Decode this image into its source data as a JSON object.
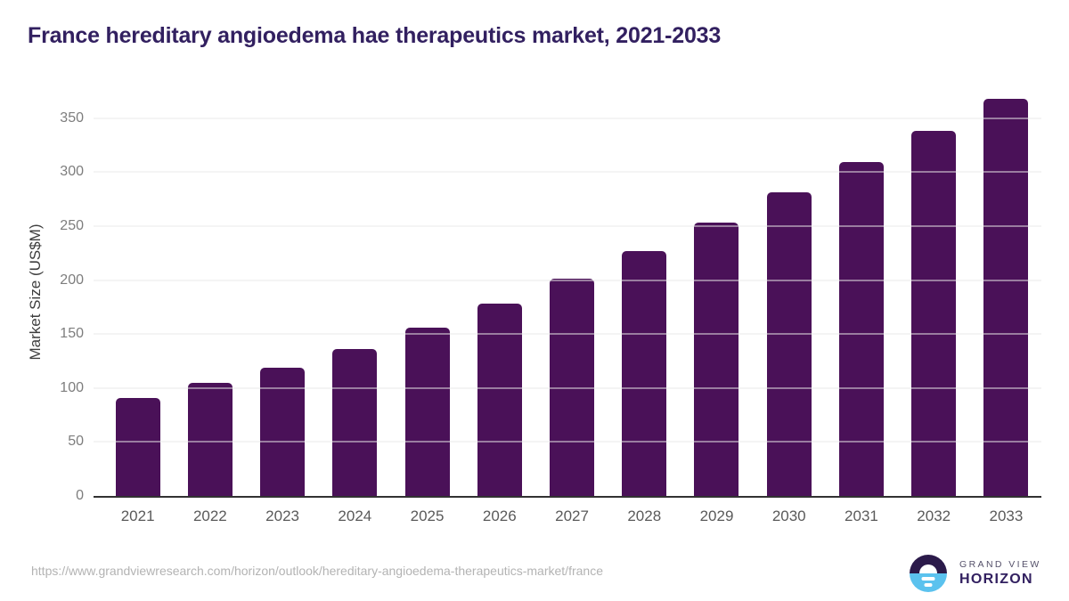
{
  "title": "France hereditary angioedema hae therapeutics market, 2021-2033",
  "colors": {
    "bar": "#4a1158",
    "title": "#322060",
    "axis": "#323232",
    "logo_dark": "#2b1a4a",
    "logo_blue": "#5bc2ee"
  },
  "chart_data": {
    "type": "bar",
    "title": "France hereditary angioedema hae therapeutics market, 2021-2033",
    "categories": [
      "2021",
      "2022",
      "2023",
      "2024",
      "2025",
      "2026",
      "2027",
      "2028",
      "2029",
      "2030",
      "2031",
      "2032",
      "2033"
    ],
    "values": [
      91,
      105,
      119,
      136,
      156,
      178,
      201,
      227,
      253,
      281,
      309,
      338,
      368
    ],
    "xlabel": "",
    "ylabel": "Market Size (US$M)",
    "ylim": [
      0,
      377
    ],
    "yticks": [
      0,
      50,
      100,
      150,
      200,
      250,
      300,
      350
    ],
    "grid": true,
    "legend": "none",
    "bar_color": "#4a1158"
  },
  "footer": {
    "source_url": "https://www.grandviewresearch.com/horizon/outlook/hereditary-angioedema-therapeutics-market/france",
    "logo": {
      "line1": "GRAND VIEW",
      "line2": "HORIZON"
    }
  }
}
